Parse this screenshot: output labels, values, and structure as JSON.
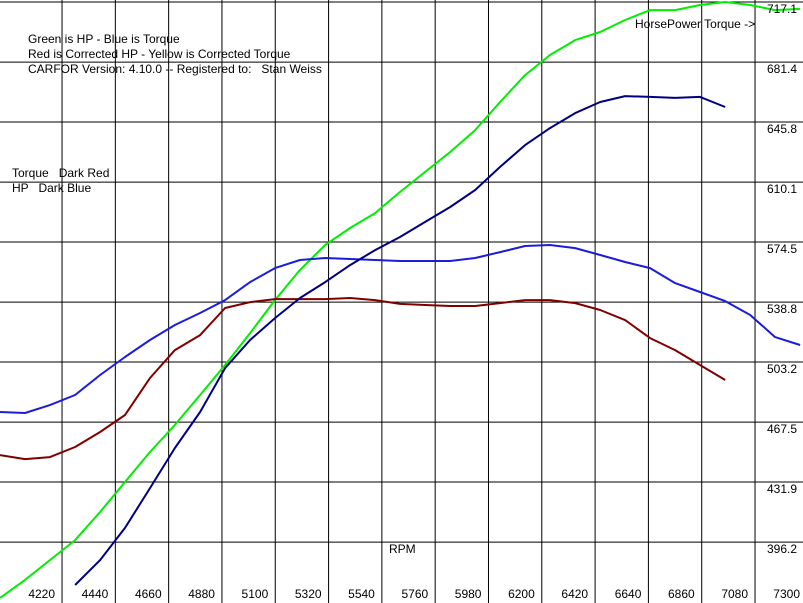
{
  "chart_data": {
    "type": "line",
    "annotations": [
      "Green is HP - Blue is Torque",
      "Red is Corrected HP - Yellow is Corrected Torque",
      "CARFOR Version: 4.10.0 -- Registered to:   Stan Weiss",
      "Torque   Dark Red",
      "HP   Dark Blue",
      "HorsePower Torque ->"
    ],
    "x_label": "RPM",
    "x": [
      3964,
      4067,
      4170,
      4274,
      4377,
      4480,
      4583,
      4686,
      4790,
      4893,
      4996,
      5099,
      5202,
      5306,
      5409,
      5512,
      5615,
      5718,
      5822,
      5925,
      6028,
      6131,
      6234,
      6338,
      6441,
      6544,
      6647,
      6750,
      6853,
      6957,
      7060,
      7163,
      7266
    ],
    "series": [
      {
        "color": "#00ee00",
        "values": [
          363.0,
          373.7,
          385.5,
          397.4,
          414.1,
          431.9,
          449.7,
          465.8,
          483.6,
          501.4,
          520.4,
          540.0,
          557.9,
          572.7,
          582.8,
          591.7,
          604.2,
          616.1,
          628.0,
          641.0,
          657.7,
          673.7,
          685.6,
          694.5,
          699.3,
          706.4,
          712.3,
          712.3,
          715.3,
          717.1,
          715.3,
          712.3,
          713.0
        ]
      },
      {
        "color": "#1c1cdc",
        "values": [
          473.5,
          472.9,
          477.6,
          483.6,
          495.5,
          506.2,
          516.3,
          525.2,
          532.3,
          540.0,
          550.7,
          559.0,
          563.8,
          565.0,
          564.4,
          563.8,
          563.2,
          563.2,
          563.2,
          565.0,
          568.5,
          572.1,
          572.7,
          570.9,
          566.8,
          562.6,
          559.0,
          550.1,
          544.8,
          539.4,
          531.1,
          518.0,
          513.3
        ]
      },
      {
        "color": "#800000",
        "values": [
          447.9,
          445.5,
          446.7,
          452.7,
          461.6,
          471.7,
          493.7,
          510.3,
          519.2,
          535.3,
          538.8,
          540.6,
          540.6,
          540.6,
          541.2,
          540.0,
          537.7,
          537.1,
          536.5,
          536.5,
          538.2,
          540.0,
          540.0,
          538.2,
          534.1,
          528.1,
          517.4,
          510.3,
          501.4,
          492.5,
          null,
          null,
          null
        ]
      },
      {
        "color": "#000080",
        "values": [
          null,
          null,
          null,
          370.7,
          385.5,
          404.6,
          428.3,
          452.1,
          473.5,
          499.6,
          516.3,
          529.3,
          541.2,
          550.7,
          560.8,
          569.7,
          577.5,
          586.4,
          595.3,
          605.4,
          619.1,
          632.1,
          642.2,
          651.1,
          657.7,
          661.2,
          660.7,
          660.1,
          660.7,
          654.7,
          null,
          null,
          null
        ]
      }
    ],
    "xlim": [
      3964,
      7278
    ],
    "xticks": [
      4220,
      4440,
      4660,
      4880,
      5100,
      5320,
      5540,
      5760,
      5980,
      6200,
      6420,
      6640,
      6860,
      7080,
      7300
    ],
    "ylim": [
      360.0,
      718.3
    ],
    "yticks": [
      396.2,
      431.9,
      467.5,
      503.2,
      538.8,
      574.5,
      610.1,
      645.8,
      681.4,
      717.1
    ],
    "grid": true
  }
}
